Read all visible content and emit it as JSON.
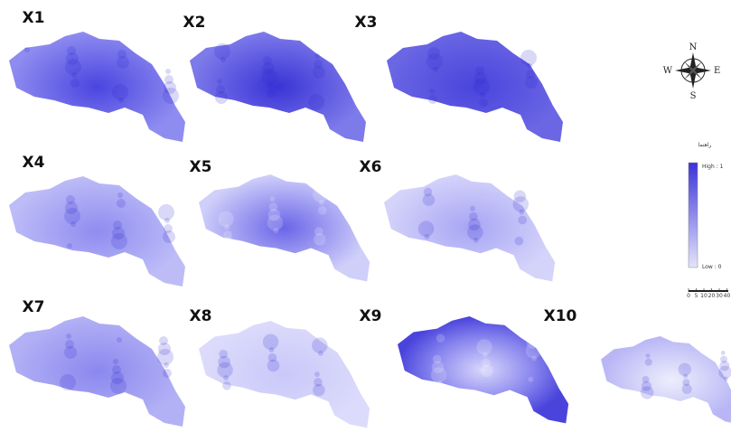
{
  "panels": [
    {
      "label": "X1"
    },
    {
      "label": "X2"
    },
    {
      "label": "X3"
    },
    {
      "label": "X4"
    },
    {
      "label": "X5"
    },
    {
      "label": "X6"
    },
    {
      "label": "X7"
    },
    {
      "label": "X8"
    },
    {
      "label": "X9"
    },
    {
      "label": "X10"
    }
  ],
  "compass": {
    "north": "N",
    "east": "E",
    "south": "S",
    "west": "W"
  },
  "legend": {
    "title": "راهنما",
    "high": "High : 1",
    "low": "Low : 0"
  },
  "scale_bar": {
    "labels": [
      "0",
      "5",
      "10",
      "20",
      "30",
      "40"
    ]
  }
}
